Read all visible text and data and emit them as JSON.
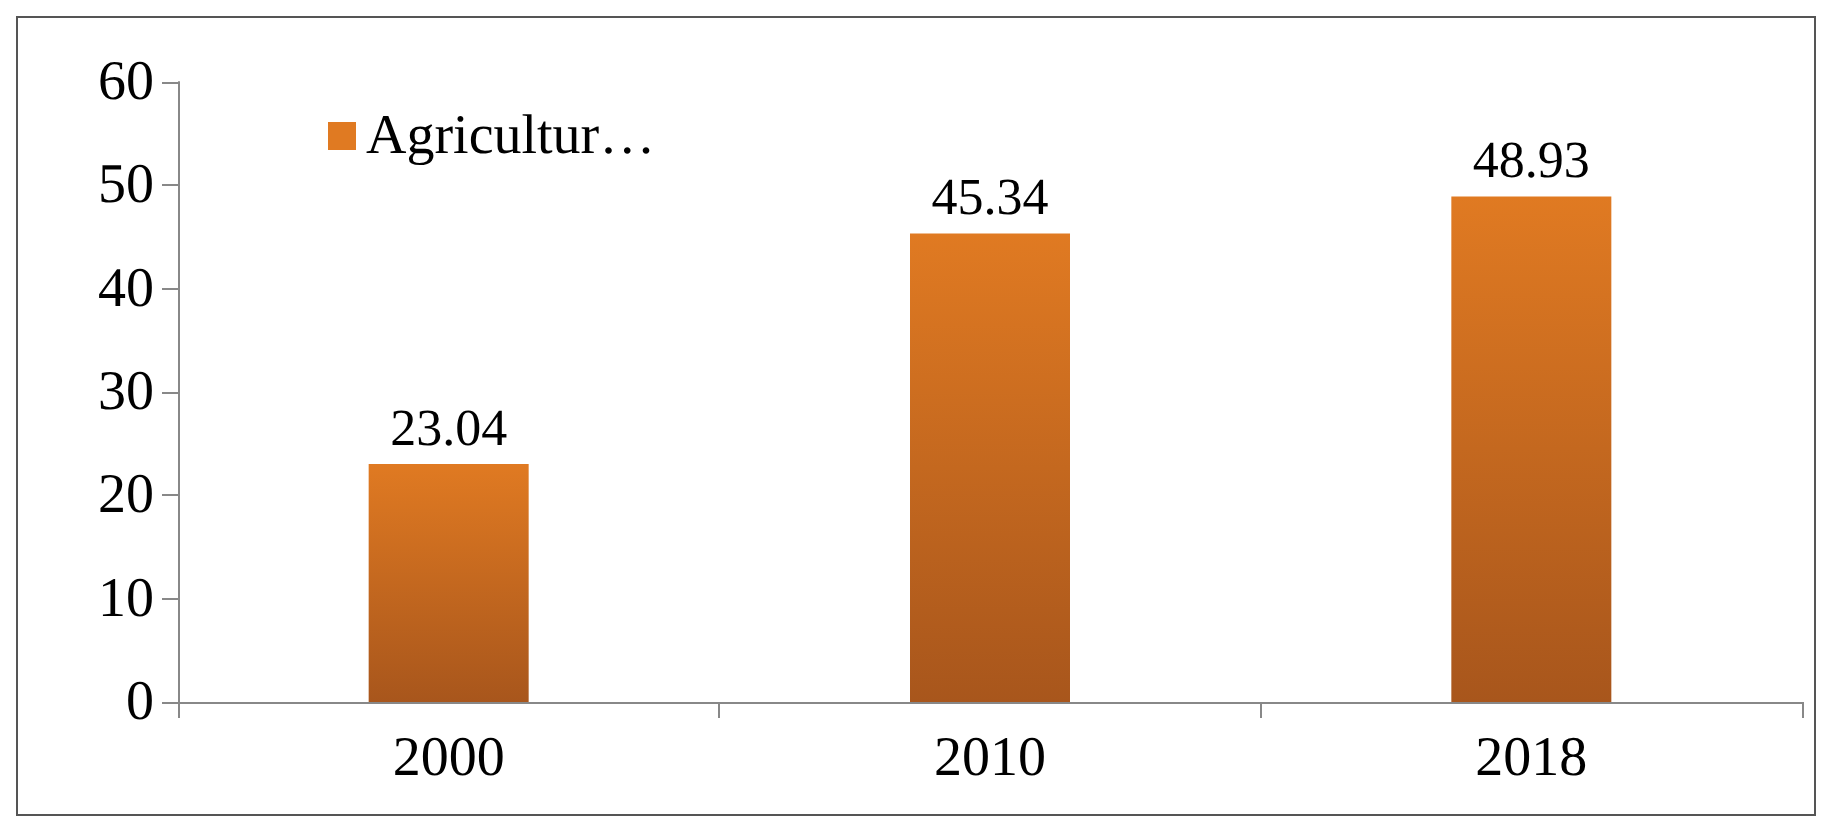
{
  "chart_data": {
    "type": "bar",
    "categories": [
      "2000",
      "2010",
      "2018"
    ],
    "series": [
      {
        "name": "Agricultur…",
        "color": "#e07a22",
        "values": [
          23.04,
          45.34,
          48.93
        ]
      }
    ],
    "ylim": [
      0,
      60
    ],
    "yticks": [
      0,
      10,
      20,
      30,
      40,
      50,
      60
    ],
    "data_labels": true,
    "legend": "top left",
    "grid": false
  }
}
